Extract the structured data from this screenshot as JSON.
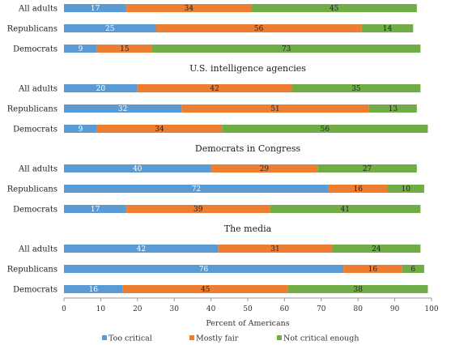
{
  "chart_data": {
    "type": "bar",
    "orientation": "horizontal",
    "stacked": true,
    "xlabel": "Percent of Americans",
    "xlim": [
      0,
      100
    ],
    "xticks": [
      0,
      10,
      20,
      30,
      40,
      50,
      60,
      70,
      80,
      90,
      100
    ],
    "grid": false,
    "legend_position": "bottom",
    "series": [
      {
        "name": "Too critical",
        "color": "#5B9BD5"
      },
      {
        "name": "Mostly fair",
        "color": "#ED7D31"
      },
      {
        "name": "Not critical enough",
        "color": "#70AD47"
      }
    ],
    "groups": [
      {
        "title": "",
        "rows": [
          {
            "category": "All adults",
            "values": [
              17,
              34,
              45
            ]
          },
          {
            "category": "Republicans",
            "values": [
              25,
              56,
              14
            ]
          },
          {
            "category": "Democrats",
            "values": [
              9,
              15,
              73
            ]
          }
        ]
      },
      {
        "title": "U.S. intelligence agencies",
        "rows": [
          {
            "category": "All adults",
            "values": [
              20,
              42,
              35
            ]
          },
          {
            "category": "Republicans",
            "values": [
              32,
              51,
              13
            ]
          },
          {
            "category": "Democrats",
            "values": [
              9,
              34,
              56
            ]
          }
        ]
      },
      {
        "title": "Democrats in Congress",
        "rows": [
          {
            "category": "All adults",
            "values": [
              40,
              29,
              27
            ]
          },
          {
            "category": "Republicans",
            "values": [
              72,
              16,
              10
            ]
          },
          {
            "category": "Democrats",
            "values": [
              17,
              39,
              41
            ]
          }
        ]
      },
      {
        "title": "The media",
        "rows": [
          {
            "category": "All adults",
            "values": [
              42,
              31,
              24
            ]
          },
          {
            "category": "Republicans",
            "values": [
              76,
              16,
              6
            ]
          },
          {
            "category": "Democrats",
            "values": [
              16,
              45,
              38
            ]
          }
        ]
      }
    ]
  }
}
